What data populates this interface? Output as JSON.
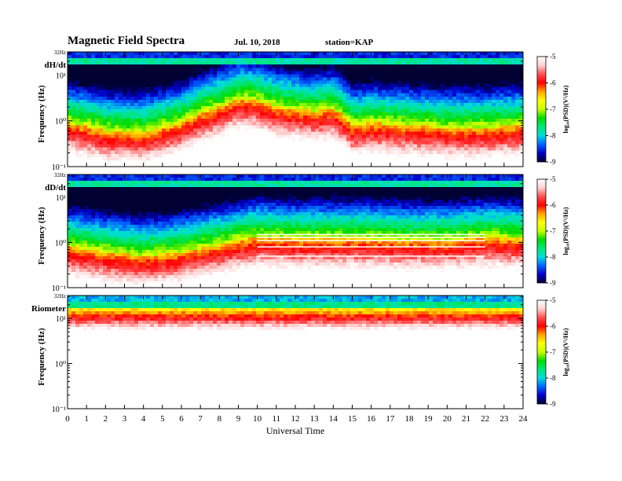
{
  "header": {
    "title": "Magnetic  Field  Spectra",
    "date": "Jul.  10, 2018",
    "station": "station=KAP"
  },
  "colors": {
    "scale": [
      "#000033",
      "#0000c8",
      "#0064ff",
      "#00dcdc",
      "#00e678",
      "#00dc00",
      "#c8ff00",
      "#ffff00",
      "#ffa500",
      "#ff0000",
      "#ff5050",
      "#ffd2d2",
      "#ffffff"
    ]
  },
  "chart_data": [
    {
      "type": "heatmap",
      "panel_label": "dH/dt",
      "ylabel": "Frequency  (Hz)",
      "y_scale": "log",
      "ylim_hz": [
        0.1,
        32
      ],
      "y_tick_labels": [
        "32Hz",
        "10¹",
        "10⁰",
        "10⁻¹"
      ],
      "xlim": [
        0,
        24
      ],
      "colorbar": {
        "label": "log₁₀(PSD)(V²/Hz)",
        "range": [
          -9,
          -5
        ],
        "tick_labels": [
          "-5",
          "-6",
          "-7",
          "-8",
          "-9"
        ]
      },
      "z_units": "log10 PSD",
      "description_profile": {
        "hours": [
          0,
          2,
          4,
          6,
          8,
          9,
          10,
          11,
          12,
          13,
          14,
          15,
          16,
          18,
          20,
          22,
          24
        ],
        "red_boundary_freq_hz": [
          0.9,
          0.6,
          0.55,
          0.9,
          2.0,
          3.0,
          2.8,
          2.0,
          1.8,
          1.6,
          1.8,
          0.8,
          0.9,
          0.8,
          0.7,
          0.7,
          0.8
        ]
      }
    },
    {
      "type": "heatmap",
      "panel_label": "dD/dt",
      "ylabel": "Frequency  (Hz)",
      "y_scale": "log",
      "ylim_hz": [
        0.1,
        32
      ],
      "y_tick_labels": [
        "32Hz",
        "10¹",
        "10⁰",
        "10⁻¹"
      ],
      "xlim": [
        0,
        24
      ],
      "colorbar": {
        "label": "log₁₀(PSD)(V²/Hz)",
        "range": [
          -9,
          -5
        ],
        "tick_labels": [
          "-5",
          "-6",
          "-7",
          "-8",
          "-9"
        ]
      },
      "z_units": "log10 PSD",
      "description_profile": {
        "hours": [
          0,
          2,
          4,
          6,
          8,
          10,
          12,
          14,
          16,
          18,
          20,
          22,
          24
        ],
        "red_boundary_freq_hz": [
          0.8,
          0.6,
          0.5,
          0.6,
          0.9,
          1.3,
          1.2,
          1.2,
          1.2,
          1.1,
          1.1,
          1.3,
          1.2
        ]
      },
      "artifact_lines_hz": [
        1.5,
        1.3,
        1.1,
        0.8,
        0.5,
        0.25
      ],
      "artifact_span_hours": [
        10,
        22
      ]
    },
    {
      "type": "heatmap",
      "panel_label": "Riometer",
      "ylabel": "Frequency  (Hz)",
      "y_scale": "log",
      "ylim_hz": [
        0.1,
        32
      ],
      "y_tick_labels": [
        "32Hz",
        "10¹",
        "10⁰",
        "10⁻¹"
      ],
      "xlim": [
        0,
        24
      ],
      "xlabel": "Universal Time",
      "x_tick_labels": [
        "0",
        "1",
        "2",
        "3",
        "4",
        "5",
        "6",
        "7",
        "8",
        "9",
        "10",
        "11",
        "12",
        "13",
        "14",
        "15",
        "16",
        "17",
        "18",
        "19",
        "20",
        "21",
        "22",
        "23",
        "24"
      ],
      "colorbar": {
        "label": "log₁₀(PSD)(V²/Hz)",
        "range": [
          -9,
          -5
        ],
        "tick_labels": [
          "-5",
          "-6",
          "-7",
          "-8",
          "-9"
        ]
      },
      "z_units": "log10 PSD",
      "description_profile": {
        "hours": [
          0,
          24
        ],
        "red_boundary_freq_hz": [
          5.0,
          5.0
        ]
      }
    }
  ]
}
